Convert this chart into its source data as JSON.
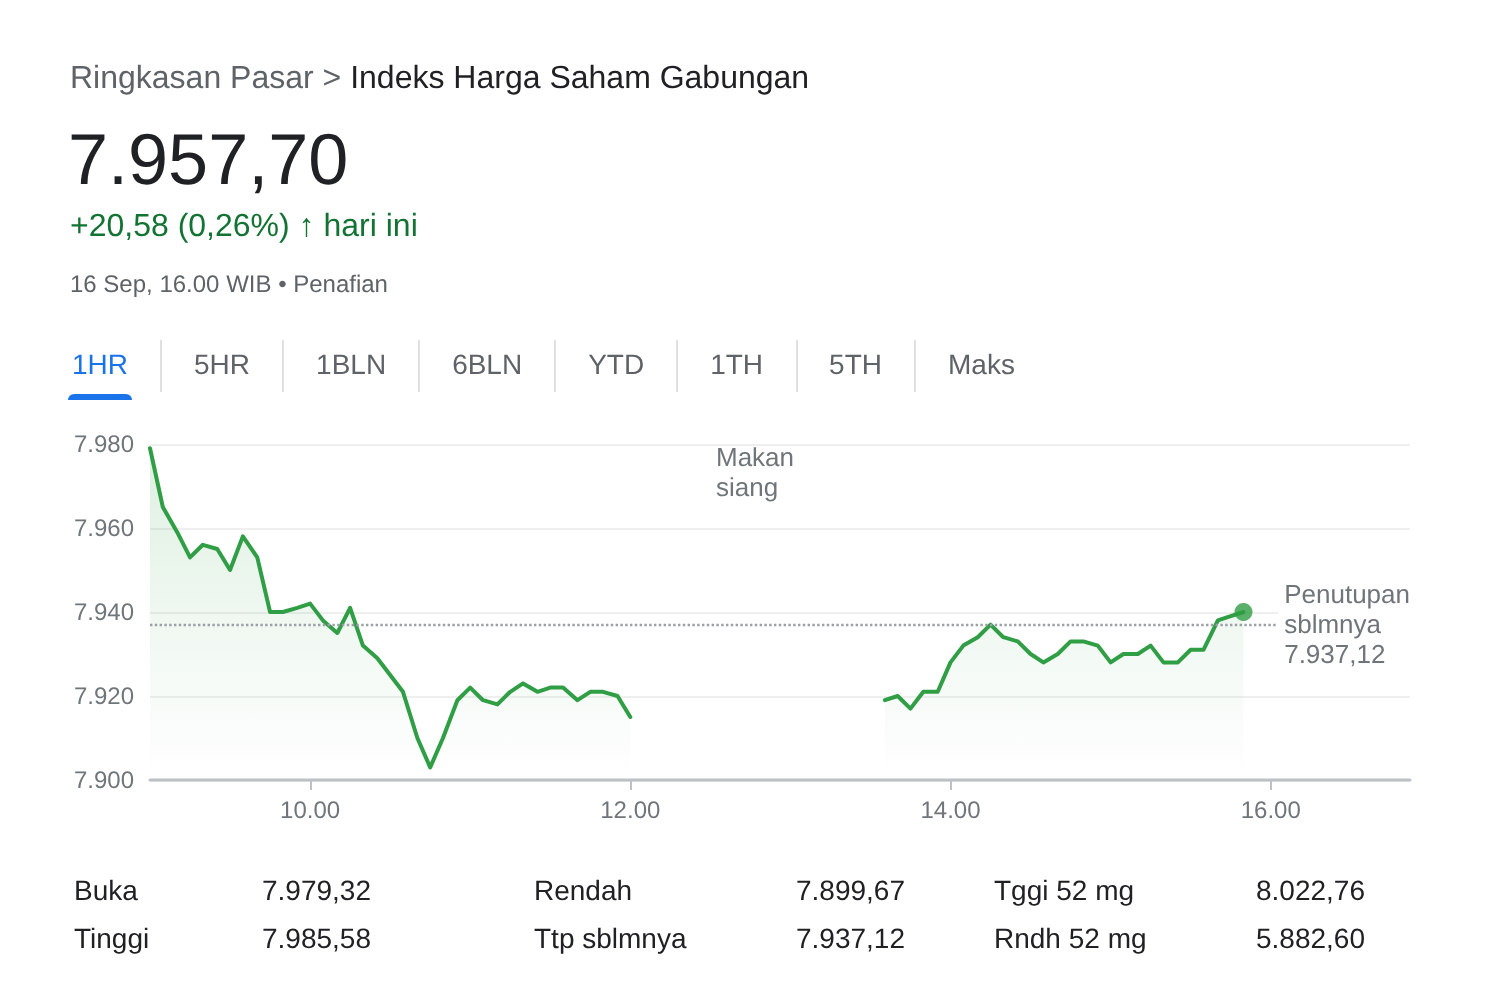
{
  "chart_data": {
    "type": "area",
    "title": "Ringkasan Pasar > Indeks Harga Saham Gabungan",
    "subtitle": "7.957,70",
    "annotations": [
      "+20,58 (0,26%) ↑ hari ini",
      "16 Sep, 16.00 WIB • Penafian",
      "1HR",
      "5HR",
      "1BLN",
      "6BLN",
      "YTD",
      "1TH",
      "5TH",
      "Maks",
      "Buka",
      "7.979,32",
      "Rendah",
      "7.899,67",
      "Tggi 52 mg",
      "8.022,76",
      "Tinggi",
      "7.985,58",
      "Ttp sblmnya",
      "7.937,12",
      "Rndh 52 mg",
      "5.882,60",
      "Makan siang"
    ],
    "series": [
      {
        "color": "#2f9e44",
        "x": [
          9,
          9.08,
          9.17,
          9.25,
          9.33,
          9.42,
          9.5,
          9.58,
          9.67,
          9.75,
          9.83,
          9.92,
          10,
          10.08,
          10.17,
          10.25,
          10.33,
          10.42,
          10.5,
          10.58,
          10.67,
          10.75,
          10.83,
          10.92,
          11,
          11.08,
          11.17,
          11.25,
          11.33,
          11.42,
          11.5,
          11.58,
          11.67,
          11.75,
          11.83,
          11.92,
          12,
          13,
          13.59,
          13.67,
          13.75,
          13.83,
          13.92,
          14,
          14.08,
          14.17,
          14.25,
          14.33,
          14.42,
          14.5,
          14.58,
          14.67,
          14.75,
          14.83,
          14.92,
          15,
          15.08,
          15.17,
          15.25,
          15.33,
          15.42,
          15.5,
          15.58,
          15.67,
          15.75,
          15.83
        ],
        "values": [
          7979,
          7965,
          7959,
          7953,
          7956,
          7955,
          7950,
          7958,
          7953,
          7940,
          7940,
          7941,
          7942,
          7938,
          7935,
          7941,
          7932,
          7929,
          7925,
          7921,
          7910,
          7903,
          7910,
          7919,
          7922,
          7919,
          7918,
          7921,
          7923,
          7921,
          7922,
          7922,
          7919,
          7921,
          7921,
          7920,
          7915,
          null,
          7919,
          7920,
          7917,
          7921,
          7921,
          7928,
          7932,
          7934,
          7937,
          7934,
          7933,
          7930,
          7928,
          7930,
          7933,
          7933,
          7932,
          7928,
          7930,
          7930,
          7932,
          7928,
          7928,
          7931,
          7931,
          7938,
          7939,
          7940
        ]
      },
      {
        "type": "scatter",
        "marker": "circle",
        "color": "#2f9e44",
        "x": [
          15.83
        ],
        "values": [
          7940
        ]
      }
    ],
    "xlim": [
      9,
      16.87
    ],
    "xticks": [
      {
        "value": 10,
        "label": "10.00"
      },
      {
        "value": 12,
        "label": "12.00"
      },
      {
        "value": 14,
        "label": "14.00"
      },
      {
        "value": 16,
        "label": "16.00"
      }
    ],
    "ylim": [
      7900,
      7980
    ],
    "yticks": [
      {
        "value": 7900,
        "label": "7.900"
      },
      {
        "value": 7920,
        "label": "7.920"
      },
      {
        "value": 7940,
        "label": "7.940"
      },
      {
        "value": 7960,
        "label": "7.960"
      },
      {
        "value": 7980,
        "label": "7.980"
      }
    ],
    "ref_lines": [
      {
        "axis": "y",
        "value": 7937.12,
        "label": "Penutupan sblmnya 7.937,12",
        "color": "#9aa0a6",
        "line_style": "dotted"
      }
    ],
    "grid": "y",
    "marker": "none",
    "line_style": "solid"
  }
}
